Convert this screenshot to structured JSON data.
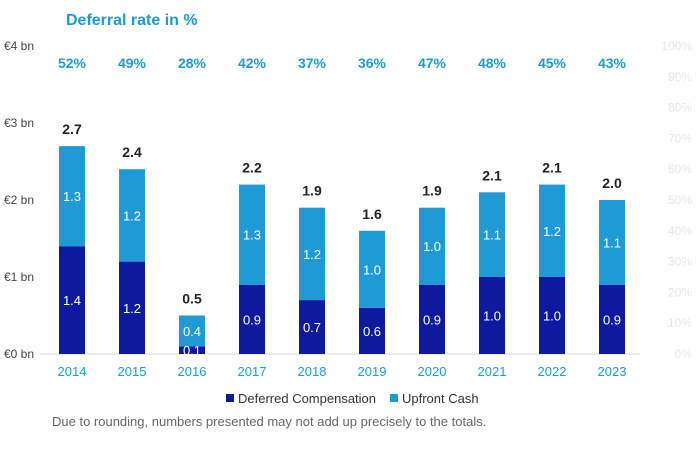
{
  "chart_data": {
    "type": "bar",
    "stacked": true,
    "title": "Deferral rate in %",
    "categories": [
      "2014",
      "2015",
      "2016",
      "2017",
      "2018",
      "2019",
      "2020",
      "2021",
      "2022",
      "2023"
    ],
    "series": [
      {
        "name": "Deferred Compensation",
        "values": [
          1.4,
          1.2,
          0.1,
          0.9,
          0.7,
          0.6,
          0.9,
          1.0,
          1.0,
          0.9
        ],
        "labels": [
          "1.4",
          "1.2",
          "0.1",
          "0.9",
          "0.7",
          "0.6",
          "0.9",
          "1.0",
          "1.0",
          "0.9"
        ]
      },
      {
        "name": "Upfront Cash",
        "values": [
          1.3,
          1.2,
          0.4,
          1.3,
          1.2,
          1.0,
          1.0,
          1.1,
          1.2,
          1.1
        ],
        "labels": [
          "1.3",
          "1.2",
          "0.4",
          "1.3",
          "1.2",
          "1.0",
          "1.0",
          "1.1",
          "1.2",
          "1.1"
        ]
      }
    ],
    "totals": [
      2.7,
      2.4,
      0.5,
      2.2,
      1.9,
      1.6,
      1.9,
      2.1,
      2.1,
      2.0
    ],
    "total_labels": [
      "2.7",
      "2.4",
      "0.5",
      "2.2",
      "1.9",
      "1.6",
      "1.9",
      "2.1",
      "2.1",
      "2.0"
    ],
    "deferral_rates": [
      "52%",
      "49%",
      "28%",
      "42%",
      "37%",
      "36%",
      "47%",
      "48%",
      "45%",
      "43%"
    ],
    "ylim": [
      0,
      4
    ],
    "y_ticks": [
      0,
      1,
      2,
      3,
      4
    ],
    "y_tick_labels": [
      "€0 bn",
      "€1 bn",
      "€2 bn",
      "€3 bn",
      "€4 bn"
    ],
    "y2_ticks": [
      0,
      10,
      20,
      30,
      40,
      50,
      60,
      70,
      80,
      90,
      100
    ],
    "y2_tick_labels": [
      "0%",
      "10%",
      "20%",
      "30%",
      "40%",
      "50%",
      "60%",
      "70%",
      "80%",
      "90%",
      "100%"
    ],
    "legend": {
      "position": "bottom"
    },
    "colors": {
      "deferred": "#0d1aa0",
      "upfront": "#1f9ad6",
      "rate_text": "#1f9ad6",
      "right_axis": "#e6e6e6"
    }
  },
  "footnote": "Due to rounding, numbers presented may not add up precisely to the totals."
}
